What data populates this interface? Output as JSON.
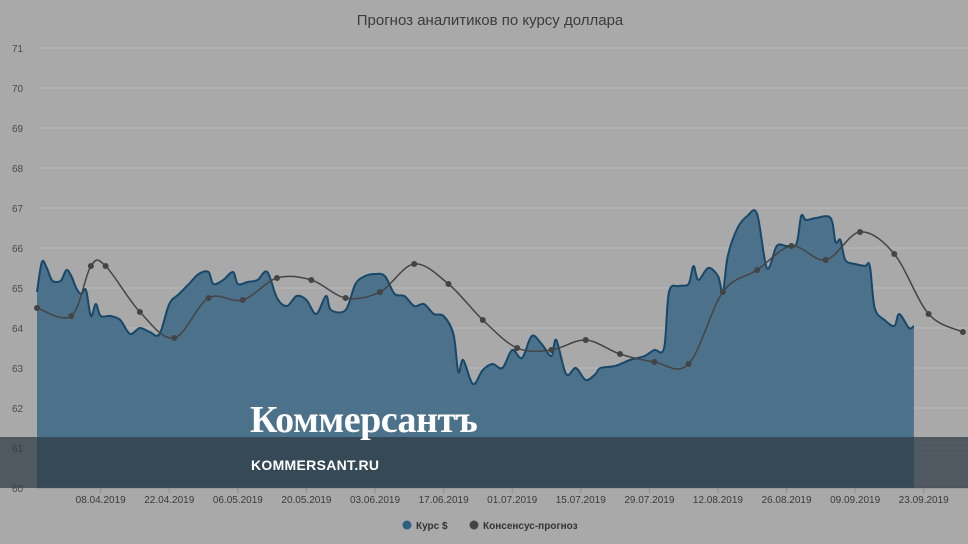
{
  "chart_data": {
    "type": "area",
    "title": "Прогноз аналитиков по курсу доллара",
    "ylim": [
      60,
      71
    ],
    "yticks": [
      60,
      61,
      62,
      63,
      64,
      65,
      66,
      67,
      68,
      69,
      70,
      71
    ],
    "xlim": [
      "2019-03-26",
      "2019-09-30"
    ],
    "xticks": [
      "08.04.2019",
      "22.04.2019",
      "06.05.2019",
      "20.05.2019",
      "03.06.2019",
      "17.06.2019",
      "01.07.2019",
      "15.07.2019",
      "29.07.2019",
      "12.08.2019",
      "26.08.2019",
      "09.09.2019",
      "23.09.2019"
    ],
    "grid": true,
    "legend_position": "bottom",
    "series": [
      {
        "name": "Курс $",
        "kind": "area",
        "color": "#2e5f80",
        "points": [
          [
            "2019-03-26",
            64.9
          ],
          [
            "2019-03-27",
            65.65
          ],
          [
            "2019-03-28",
            65.5
          ],
          [
            "2019-03-29",
            65.2
          ],
          [
            "2019-03-30",
            65.15
          ],
          [
            "2019-03-31",
            65.2
          ],
          [
            "2019-04-01",
            65.45
          ],
          [
            "2019-04-02",
            65.3
          ],
          [
            "2019-04-03",
            65.0
          ],
          [
            "2019-04-04",
            64.85
          ],
          [
            "2019-04-05",
            64.95
          ],
          [
            "2019-04-06",
            64.3
          ],
          [
            "2019-04-07",
            64.6
          ],
          [
            "2019-04-08",
            64.3
          ],
          [
            "2019-04-10",
            64.3
          ],
          [
            "2019-04-12",
            64.2
          ],
          [
            "2019-04-14",
            63.85
          ],
          [
            "2019-04-16",
            64.0
          ],
          [
            "2019-04-18",
            63.9
          ],
          [
            "2019-04-20",
            63.85
          ],
          [
            "2019-04-22",
            64.6
          ],
          [
            "2019-04-24",
            64.85
          ],
          [
            "2019-04-26",
            65.1
          ],
          [
            "2019-04-28",
            65.35
          ],
          [
            "2019-04-30",
            65.4
          ],
          [
            "2019-05-01",
            65.1
          ],
          [
            "2019-05-03",
            65.2
          ],
          [
            "2019-05-05",
            65.4
          ],
          [
            "2019-05-06",
            65.1
          ],
          [
            "2019-05-08",
            65.15
          ],
          [
            "2019-05-10",
            65.2
          ],
          [
            "2019-05-12",
            65.4
          ],
          [
            "2019-05-14",
            64.75
          ],
          [
            "2019-05-16",
            64.55
          ],
          [
            "2019-05-18",
            64.8
          ],
          [
            "2019-05-20",
            64.7
          ],
          [
            "2019-05-22",
            64.35
          ],
          [
            "2019-05-24",
            64.8
          ],
          [
            "2019-05-25",
            64.45
          ],
          [
            "2019-05-28",
            64.45
          ],
          [
            "2019-05-30",
            65.1
          ],
          [
            "2019-06-01",
            65.3
          ],
          [
            "2019-06-03",
            65.35
          ],
          [
            "2019-06-05",
            65.3
          ],
          [
            "2019-06-07",
            64.85
          ],
          [
            "2019-06-09",
            64.8
          ],
          [
            "2019-06-11",
            64.55
          ],
          [
            "2019-06-13",
            64.6
          ],
          [
            "2019-06-15",
            64.35
          ],
          [
            "2019-06-17",
            64.3
          ],
          [
            "2019-06-19",
            63.85
          ],
          [
            "2019-06-20",
            62.9
          ],
          [
            "2019-06-21",
            63.2
          ],
          [
            "2019-06-23",
            62.6
          ],
          [
            "2019-06-25",
            62.95
          ],
          [
            "2019-06-27",
            63.1
          ],
          [
            "2019-06-29",
            63.0
          ],
          [
            "2019-07-01",
            63.45
          ],
          [
            "2019-07-03",
            63.25
          ],
          [
            "2019-07-05",
            63.8
          ],
          [
            "2019-07-07",
            63.6
          ],
          [
            "2019-07-09",
            63.3
          ],
          [
            "2019-07-10",
            63.7
          ],
          [
            "2019-07-12",
            62.85
          ],
          [
            "2019-07-14",
            63.0
          ],
          [
            "2019-07-16",
            62.7
          ],
          [
            "2019-07-18",
            62.85
          ],
          [
            "2019-07-19",
            63.0
          ],
          [
            "2019-07-22",
            63.05
          ],
          [
            "2019-07-25",
            63.2
          ],
          [
            "2019-07-28",
            63.3
          ],
          [
            "2019-07-30",
            63.45
          ],
          [
            "2019-08-01",
            63.5
          ],
          [
            "2019-08-02",
            64.9
          ],
          [
            "2019-08-04",
            65.05
          ],
          [
            "2019-08-06",
            65.1
          ],
          [
            "2019-08-07",
            65.55
          ],
          [
            "2019-08-08",
            65.2
          ],
          [
            "2019-08-10",
            65.5
          ],
          [
            "2019-08-12",
            65.3
          ],
          [
            "2019-08-13",
            64.9
          ],
          [
            "2019-08-14",
            65.8
          ],
          [
            "2019-08-16",
            66.5
          ],
          [
            "2019-08-18",
            66.8
          ],
          [
            "2019-08-20",
            66.85
          ],
          [
            "2019-08-22",
            65.5
          ],
          [
            "2019-08-24",
            66.05
          ],
          [
            "2019-08-26",
            66.05
          ],
          [
            "2019-08-28",
            66.1
          ],
          [
            "2019-08-29",
            66.8
          ],
          [
            "2019-08-30",
            66.7
          ],
          [
            "2019-09-01",
            66.75
          ],
          [
            "2019-09-04",
            66.75
          ],
          [
            "2019-09-05",
            66.15
          ],
          [
            "2019-09-06",
            66.2
          ],
          [
            "2019-09-07",
            65.7
          ],
          [
            "2019-09-09",
            65.6
          ],
          [
            "2019-09-11",
            65.55
          ],
          [
            "2019-09-12",
            65.55
          ],
          [
            "2019-09-13",
            64.5
          ],
          [
            "2019-09-15",
            64.2
          ],
          [
            "2019-09-17",
            64.05
          ],
          [
            "2019-09-18",
            64.35
          ],
          [
            "2019-09-20",
            64.0
          ],
          [
            "2019-09-21",
            64.05
          ]
        ]
      },
      {
        "name": "Консенсус-прогноз",
        "kind": "line",
        "color": "#444444",
        "points": [
          [
            "2019-03-26",
            64.5
          ],
          [
            "2019-04-02",
            64.3
          ],
          [
            "2019-04-06",
            65.55
          ],
          [
            "2019-04-09",
            65.55
          ],
          [
            "2019-04-16",
            64.4
          ],
          [
            "2019-04-23",
            63.75
          ],
          [
            "2019-04-30",
            64.75
          ],
          [
            "2019-05-07",
            64.7
          ],
          [
            "2019-05-14",
            65.25
          ],
          [
            "2019-05-21",
            65.2
          ],
          [
            "2019-05-28",
            64.75
          ],
          [
            "2019-06-04",
            64.9
          ],
          [
            "2019-06-11",
            65.6
          ],
          [
            "2019-06-18",
            65.1
          ],
          [
            "2019-06-25",
            64.2
          ],
          [
            "2019-07-02",
            63.5
          ],
          [
            "2019-07-09",
            63.45
          ],
          [
            "2019-07-16",
            63.7
          ],
          [
            "2019-07-23",
            63.35
          ],
          [
            "2019-07-30",
            63.15
          ],
          [
            "2019-08-06",
            63.1
          ],
          [
            "2019-08-13",
            64.9
          ],
          [
            "2019-08-20",
            65.45
          ],
          [
            "2019-08-27",
            66.05
          ],
          [
            "2019-09-03",
            65.7
          ],
          [
            "2019-09-10",
            66.4
          ],
          [
            "2019-09-17",
            65.85
          ],
          [
            "2019-09-24",
            64.35
          ],
          [
            "2019-10-01",
            63.9
          ]
        ]
      }
    ]
  },
  "watermark": {
    "brand": "Коммерсантъ",
    "url": "KOMMERSANT.RU"
  }
}
